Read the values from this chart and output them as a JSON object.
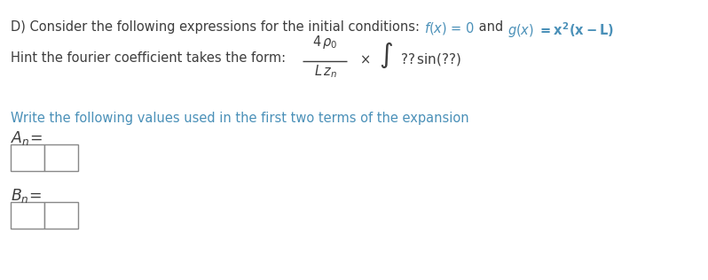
{
  "bg": "#ffffff",
  "dark": "#3d3d3d",
  "teal": "#4a90b8",
  "orange": "#d4820a",
  "fs": 10.5,
  "line1_prefix": "D) Consider the following expressions for the initial conditions: ",
  "hint_prefix": "Hint the fourier coefficient takes the form:",
  "write_line": "Write the following values used in the first two terms of the expansion"
}
